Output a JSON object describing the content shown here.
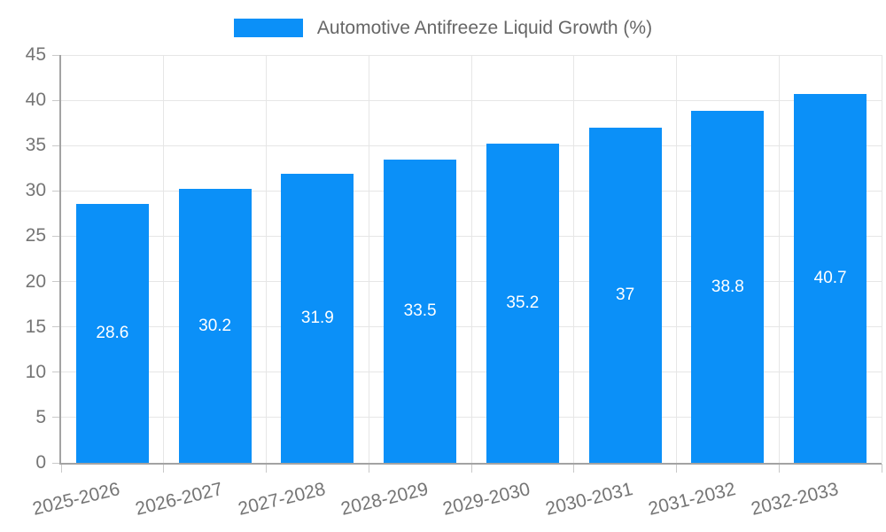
{
  "chart_data": {
    "type": "bar",
    "title": "Automotive Antifreeze Liquid Growth (%)",
    "categories": [
      "2025-2026",
      "2026-2027",
      "2027-2028",
      "2028-2029",
      "2029-2030",
      "2030-2031",
      "2031-2032",
      "2032-2033"
    ],
    "values": [
      28.6,
      30.2,
      31.9,
      33.5,
      35.2,
      37,
      38.8,
      40.7
    ],
    "value_labels": [
      "28.6",
      "30.2",
      "31.9",
      "33.5",
      "35.2",
      "37",
      "38.8",
      "40.7"
    ],
    "xlabel": "",
    "ylabel": "",
    "ylim": [
      0,
      45
    ],
    "yticks": [
      0,
      5,
      10,
      15,
      20,
      25,
      30,
      35,
      40,
      45
    ],
    "ytick_labels": [
      "0",
      "5",
      "10",
      "15",
      "20",
      "25",
      "30",
      "35",
      "40",
      "45"
    ],
    "grid": true,
    "legend_position": "top",
    "colors": {
      "bar": "#0b90f8",
      "gridline": "#e6e6e6",
      "axis_line": "#a3a3a3",
      "tick_mark": "#c9c9c9",
      "axis_text": "#757575",
      "value_text": "#ffffff",
      "legend_text": "#666666",
      "background": "#ffffff"
    }
  }
}
